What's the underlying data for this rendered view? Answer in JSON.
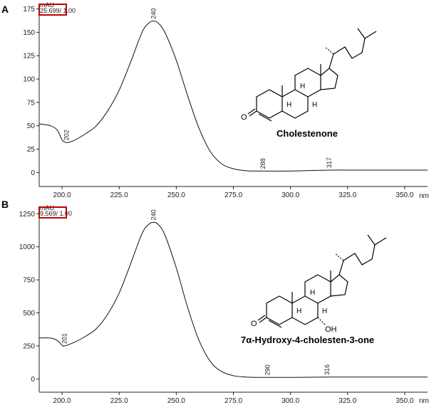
{
  "chart_data": [
    {
      "panel": "A",
      "type": "line",
      "unit_label": "mAU",
      "header_text": "25.699/ 1.00",
      "x_unit": "nm",
      "xlim": [
        190,
        360
      ],
      "ylim": [
        -15,
        180
      ],
      "xticks": [
        200,
        225,
        250,
        275,
        300,
        325,
        350
      ],
      "xtick_labels": [
        "200.0",
        "225.0",
        "250.0",
        "275.0",
        "300.0",
        "325.0",
        "350.0"
      ],
      "yticks": [
        0,
        25,
        50,
        75,
        100,
        125,
        150,
        175
      ],
      "x": [
        190,
        195,
        198,
        200,
        202,
        205,
        210,
        215,
        220,
        225,
        230,
        235,
        238,
        240,
        242,
        245,
        250,
        255,
        260,
        265,
        270,
        275,
        280,
        285,
        288,
        300,
        317,
        330,
        345,
        360
      ],
      "values": [
        52,
        50,
        45,
        35,
        32,
        34,
        41,
        50,
        66,
        88,
        118,
        150,
        160,
        162,
        160,
        150,
        120,
        82,
        47,
        22,
        9,
        4,
        2,
        1.5,
        1.5,
        1.5,
        2.5,
        2.5,
        2.5,
        2.5
      ],
      "peak_labels": [
        {
          "x": 240,
          "y": 162,
          "label": "240"
        },
        {
          "x": 202,
          "y": 32,
          "label": "202"
        },
        {
          "x": 288,
          "y": 1.5,
          "label": "288"
        },
        {
          "x": 317,
          "y": 2.5,
          "label": "317"
        }
      ],
      "compound_name": "Cholestenone",
      "structure_atoms": [
        "O",
        "H",
        "H",
        "H"
      ]
    },
    {
      "panel": "B",
      "type": "line",
      "unit_label": "mAU",
      "header_text": "9.569/ 1.00",
      "x_unit": "nm",
      "xlim": [
        190,
        360
      ],
      "ylim": [
        -100,
        1300
      ],
      "xticks": [
        200,
        225,
        250,
        275,
        300,
        325,
        350
      ],
      "xtick_labels": [
        "200.0",
        "225.0",
        "250.0",
        "275.0",
        "300.0",
        "325.0",
        "350.0"
      ],
      "yticks": [
        0,
        250,
        500,
        750,
        1000,
        1250
      ],
      "x": [
        190,
        195,
        198,
        200,
        201,
        205,
        210,
        215,
        220,
        225,
        230,
        235,
        238,
        240,
        242,
        245,
        250,
        255,
        260,
        265,
        270,
        275,
        280,
        285,
        290,
        300,
        316,
        330,
        345,
        360
      ],
      "values": [
        310,
        310,
        290,
        255,
        250,
        275,
        320,
        380,
        490,
        650,
        870,
        1100,
        1170,
        1185,
        1170,
        1090,
        840,
        540,
        290,
        130,
        55,
        25,
        15,
        12,
        12,
        12,
        14,
        14,
        14,
        14
      ],
      "peak_labels": [
        {
          "x": 240,
          "y": 1185,
          "label": "240"
        },
        {
          "x": 201,
          "y": 250,
          "label": "201"
        },
        {
          "x": 290,
          "y": 12,
          "label": "290"
        },
        {
          "x": 316,
          "y": 14,
          "label": "316"
        }
      ],
      "compound_name": "7α-Hydroxy-4-cholesten-3-one",
      "structure_atoms": [
        "O",
        "H",
        "H",
        "H",
        "OH"
      ]
    }
  ]
}
